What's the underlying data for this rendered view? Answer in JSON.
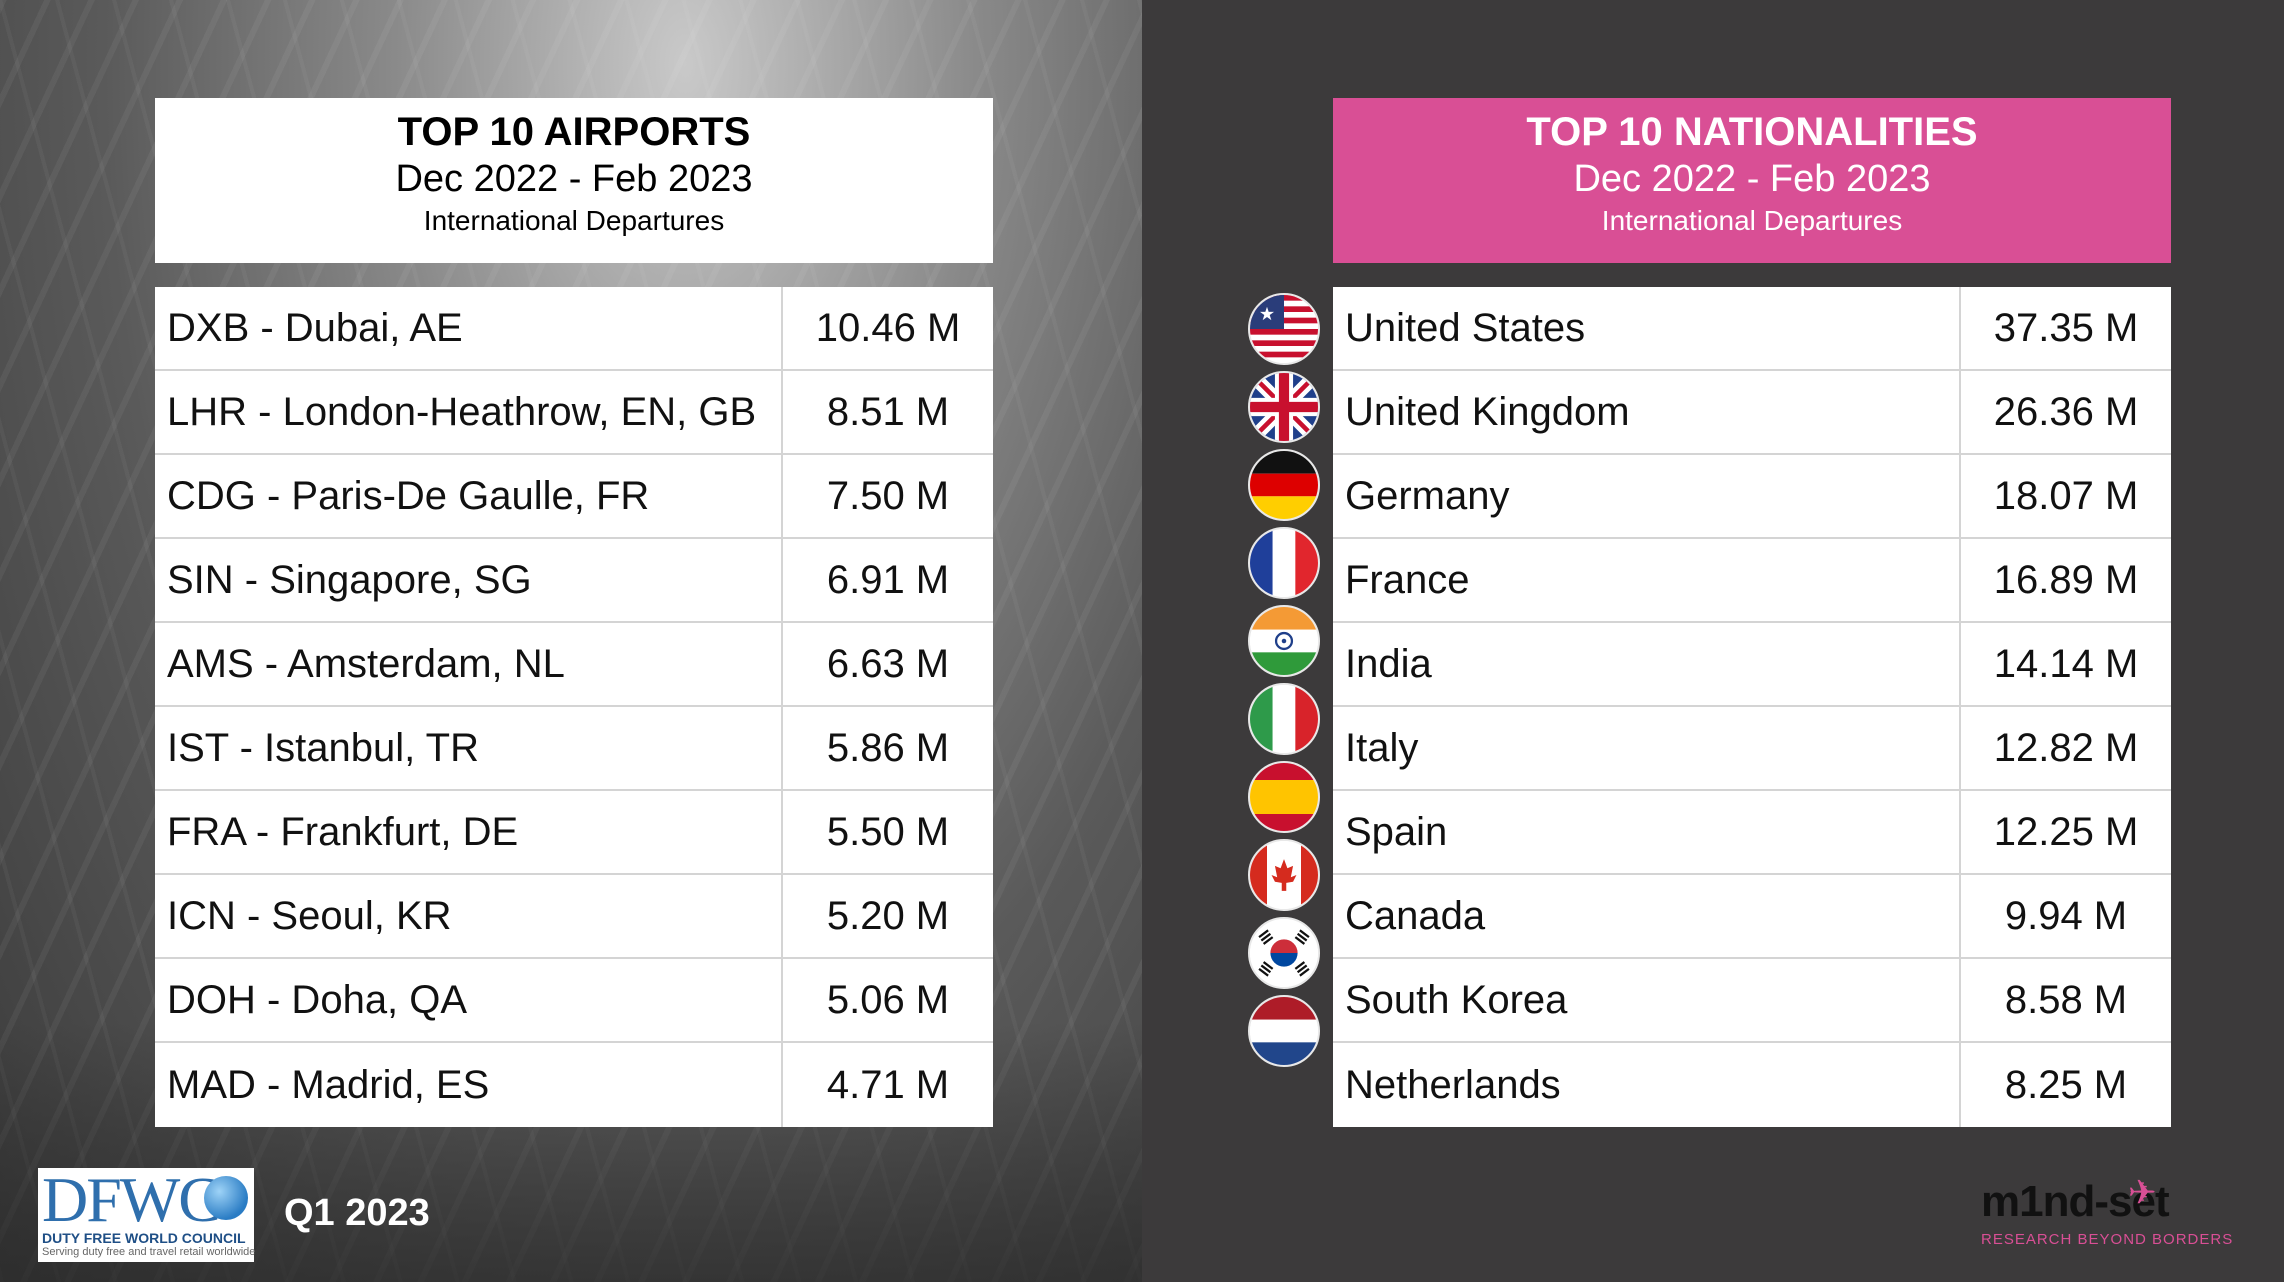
{
  "airports": {
    "title": "TOP 10 AIRPORTS",
    "period": "Dec 2022 - Feb 2023",
    "subtitle": "International Departures",
    "rows": [
      {
        "name": "DXB - Dubai, AE",
        "value": "10.46 M"
      },
      {
        "name": "LHR - London-Heathrow, EN, GB",
        "value": "8.51 M"
      },
      {
        "name": "CDG - Paris-De Gaulle, FR",
        "value": "7.50 M"
      },
      {
        "name": "SIN - Singapore, SG",
        "value": "6.91 M"
      },
      {
        "name": "AMS - Amsterdam, NL",
        "value": "6.63 M"
      },
      {
        "name": "IST - Istanbul, TR",
        "value": "5.86 M"
      },
      {
        "name": "FRA - Frankfurt, DE",
        "value": "5.50 M"
      },
      {
        "name": "ICN - Seoul, KR",
        "value": "5.20 M"
      },
      {
        "name": "DOH - Doha, QA",
        "value": "5.06 M"
      },
      {
        "name": "MAD - Madrid, ES",
        "value": "4.71 M"
      }
    ]
  },
  "nationalities": {
    "title": "TOP 10 NATIONALITIES",
    "period": "Dec 2022 - Feb 2023",
    "subtitle": "International Departures",
    "rows": [
      {
        "name": "United States",
        "value": "37.35 M",
        "flag": "us-flag-icon"
      },
      {
        "name": "United Kingdom",
        "value": "26.36 M",
        "flag": "uk-flag-icon"
      },
      {
        "name": "Germany",
        "value": "18.07 M",
        "flag": "germany-flag-icon"
      },
      {
        "name": "France",
        "value": "16.89 M",
        "flag": "france-flag-icon"
      },
      {
        "name": "India",
        "value": "14.14 M",
        "flag": "india-flag-icon"
      },
      {
        "name": "Italy",
        "value": "12.82 M",
        "flag": "italy-flag-icon"
      },
      {
        "name": "Spain",
        "value": "12.25 M",
        "flag": "spain-flag-icon"
      },
      {
        "name": "Canada",
        "value": "9.94 M",
        "flag": "canada-flag-icon"
      },
      {
        "name": "South Korea",
        "value": "8.58 M",
        "flag": "south-korea-flag-icon"
      },
      {
        "name": "Netherlands",
        "value": "8.25 M",
        "flag": "netherlands-flag-icon"
      }
    ]
  },
  "footer": {
    "quarter": "Q1 2023",
    "dfwc_letters": "DFWC",
    "dfwc_name": "DUTY FREE WORLD COUNCIL",
    "dfwc_tagline": "Serving duty free and travel retail worldwide",
    "mindset_name": "m1nd-set",
    "mindset_tagline": "RESEARCH BEYOND BORDERS"
  },
  "colors": {
    "accent_pink": "#d94f95",
    "right_panel_bg": "#3c3a3b",
    "table_bg": "#ffffff"
  }
}
